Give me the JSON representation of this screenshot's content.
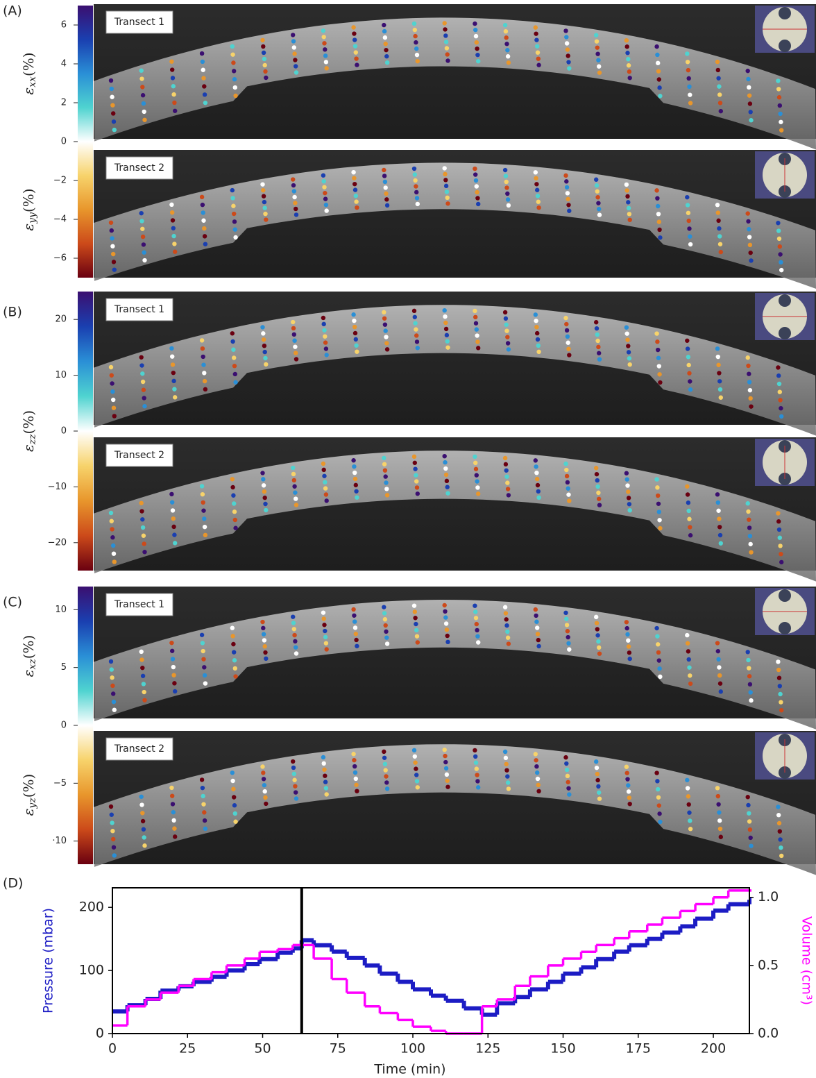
{
  "chart_data": [
    {
      "type": "colorbar",
      "panel": "(A)",
      "annotations": [
        "Transect 1",
        "Transect 2"
      ],
      "labels": [
        {
          "symbol": "ε",
          "sub": "xx",
          "unit": "(%)"
        },
        {
          "symbol": "ε",
          "sub": "yy",
          "unit": "(%)"
        }
      ],
      "ylim": [
        -7,
        7
      ],
      "yticks": [
        6,
        4,
        2,
        0,
        {
          "value": -2,
          "label": "−2"
        },
        {
          "value": -4,
          "label": "−4"
        },
        {
          "value": -6,
          "label": "−6"
        }
      ],
      "colors": [
        "#3b0f70",
        "#1a3fb0",
        "#2a8fd6",
        "#4fd3d0",
        "#ffffff",
        "#f7d36b",
        "#e8962c",
        "#cc4a1a",
        "#6a0010"
      ]
    },
    {
      "type": "colorbar",
      "panel": "(B)",
      "annotations": [
        "Transect 1",
        "Transect 2"
      ],
      "labels": [
        {
          "symbol": "ε",
          "sub": "zz",
          "unit": "(%)"
        }
      ],
      "ylim": [
        -25,
        25
      ],
      "yticks": [
        20,
        10,
        0,
        {
          "value": -10,
          "label": "−10"
        },
        {
          "value": -20,
          "label": "−20"
        }
      ],
      "colors": [
        "#3b0f70",
        "#1a3fb0",
        "#2a8fd6",
        "#4fd3d0",
        "#ffffff",
        "#f7d36b",
        "#e8962c",
        "#cc4a1a",
        "#6a0010"
      ]
    },
    {
      "type": "colorbar",
      "panel": "(C)",
      "annotations": [
        "Transect 1",
        "Transect 2"
      ],
      "labels": [
        {
          "symbol": "ε",
          "sub": "xz",
          "unit": "(%)"
        },
        {
          "symbol": "ε",
          "sub": "yz",
          "unit": "(%)"
        }
      ],
      "ylim": [
        -12,
        12
      ],
      "yticks": [
        10,
        5,
        0,
        {
          "value": -5,
          "label": "−5"
        },
        {
          "value": -10,
          "label": "·10"
        }
      ],
      "colors": [
        "#3b0f70",
        "#1a3fb0",
        "#2a8fd6",
        "#4fd3d0",
        "#ffffff",
        "#f7d36b",
        "#e8962c",
        "#cc4a1a",
        "#6a0010"
      ]
    },
    {
      "type": "step",
      "panel": "(D)",
      "xlabel": "Time (min)",
      "ylabel": "Pressure (mbar)",
      "y2label": "Volume (cm³)",
      "x": [
        0,
        5,
        11,
        16,
        22,
        27,
        33,
        38,
        44,
        49,
        55,
        60,
        63,
        67,
        73,
        78,
        84,
        89,
        95,
        100,
        106,
        111,
        117,
        123,
        128,
        134,
        139,
        145,
        150,
        156,
        161,
        167,
        172,
        178,
        183,
        189,
        194,
        200,
        205,
        212
      ],
      "series": [
        {
          "name": "Pressure (mbar)",
          "color": "#1c1cc4",
          "values": [
            35,
            45,
            55,
            68,
            75,
            82,
            90,
            100,
            110,
            118,
            128,
            135,
            148,
            140,
            130,
            120,
            108,
            95,
            82,
            70,
            60,
            52,
            40,
            30,
            48,
            58,
            70,
            82,
            95,
            105,
            118,
            130,
            140,
            150,
            160,
            170,
            182,
            195,
            205,
            212
          ]
        },
        {
          "name": "Volume (cm³)",
          "color": "#ff00ff",
          "axis": "y2",
          "values": [
            0.06,
            0.2,
            0.25,
            0.3,
            0.35,
            0.4,
            0.45,
            0.5,
            0.55,
            0.6,
            0.62,
            0.65,
            0.65,
            0.55,
            0.4,
            0.3,
            0.2,
            0.15,
            0.1,
            0.05,
            0.02,
            0,
            0,
            0.2,
            0.25,
            0.35,
            0.42,
            0.5,
            0.55,
            0.6,
            0.65,
            0.7,
            0.75,
            0.8,
            0.85,
            0.9,
            0.95,
            1,
            1.05,
            1.05
          ]
        }
      ],
      "marker_x": 63,
      "xlim": [
        0,
        212
      ],
      "xticks": [
        0,
        25,
        50,
        75,
        100,
        125,
        150,
        175,
        200
      ],
      "ylim": [
        0,
        231
      ],
      "yticks": [
        0,
        100,
        200
      ],
      "y2lim": [
        0,
        1.07
      ],
      "y2ticks": [
        {
          "value": 0,
          "label": "0.0"
        },
        {
          "value": 0.5,
          "label": "0.5"
        },
        {
          "value": 1,
          "label": "1.0"
        }
      ]
    }
  ]
}
